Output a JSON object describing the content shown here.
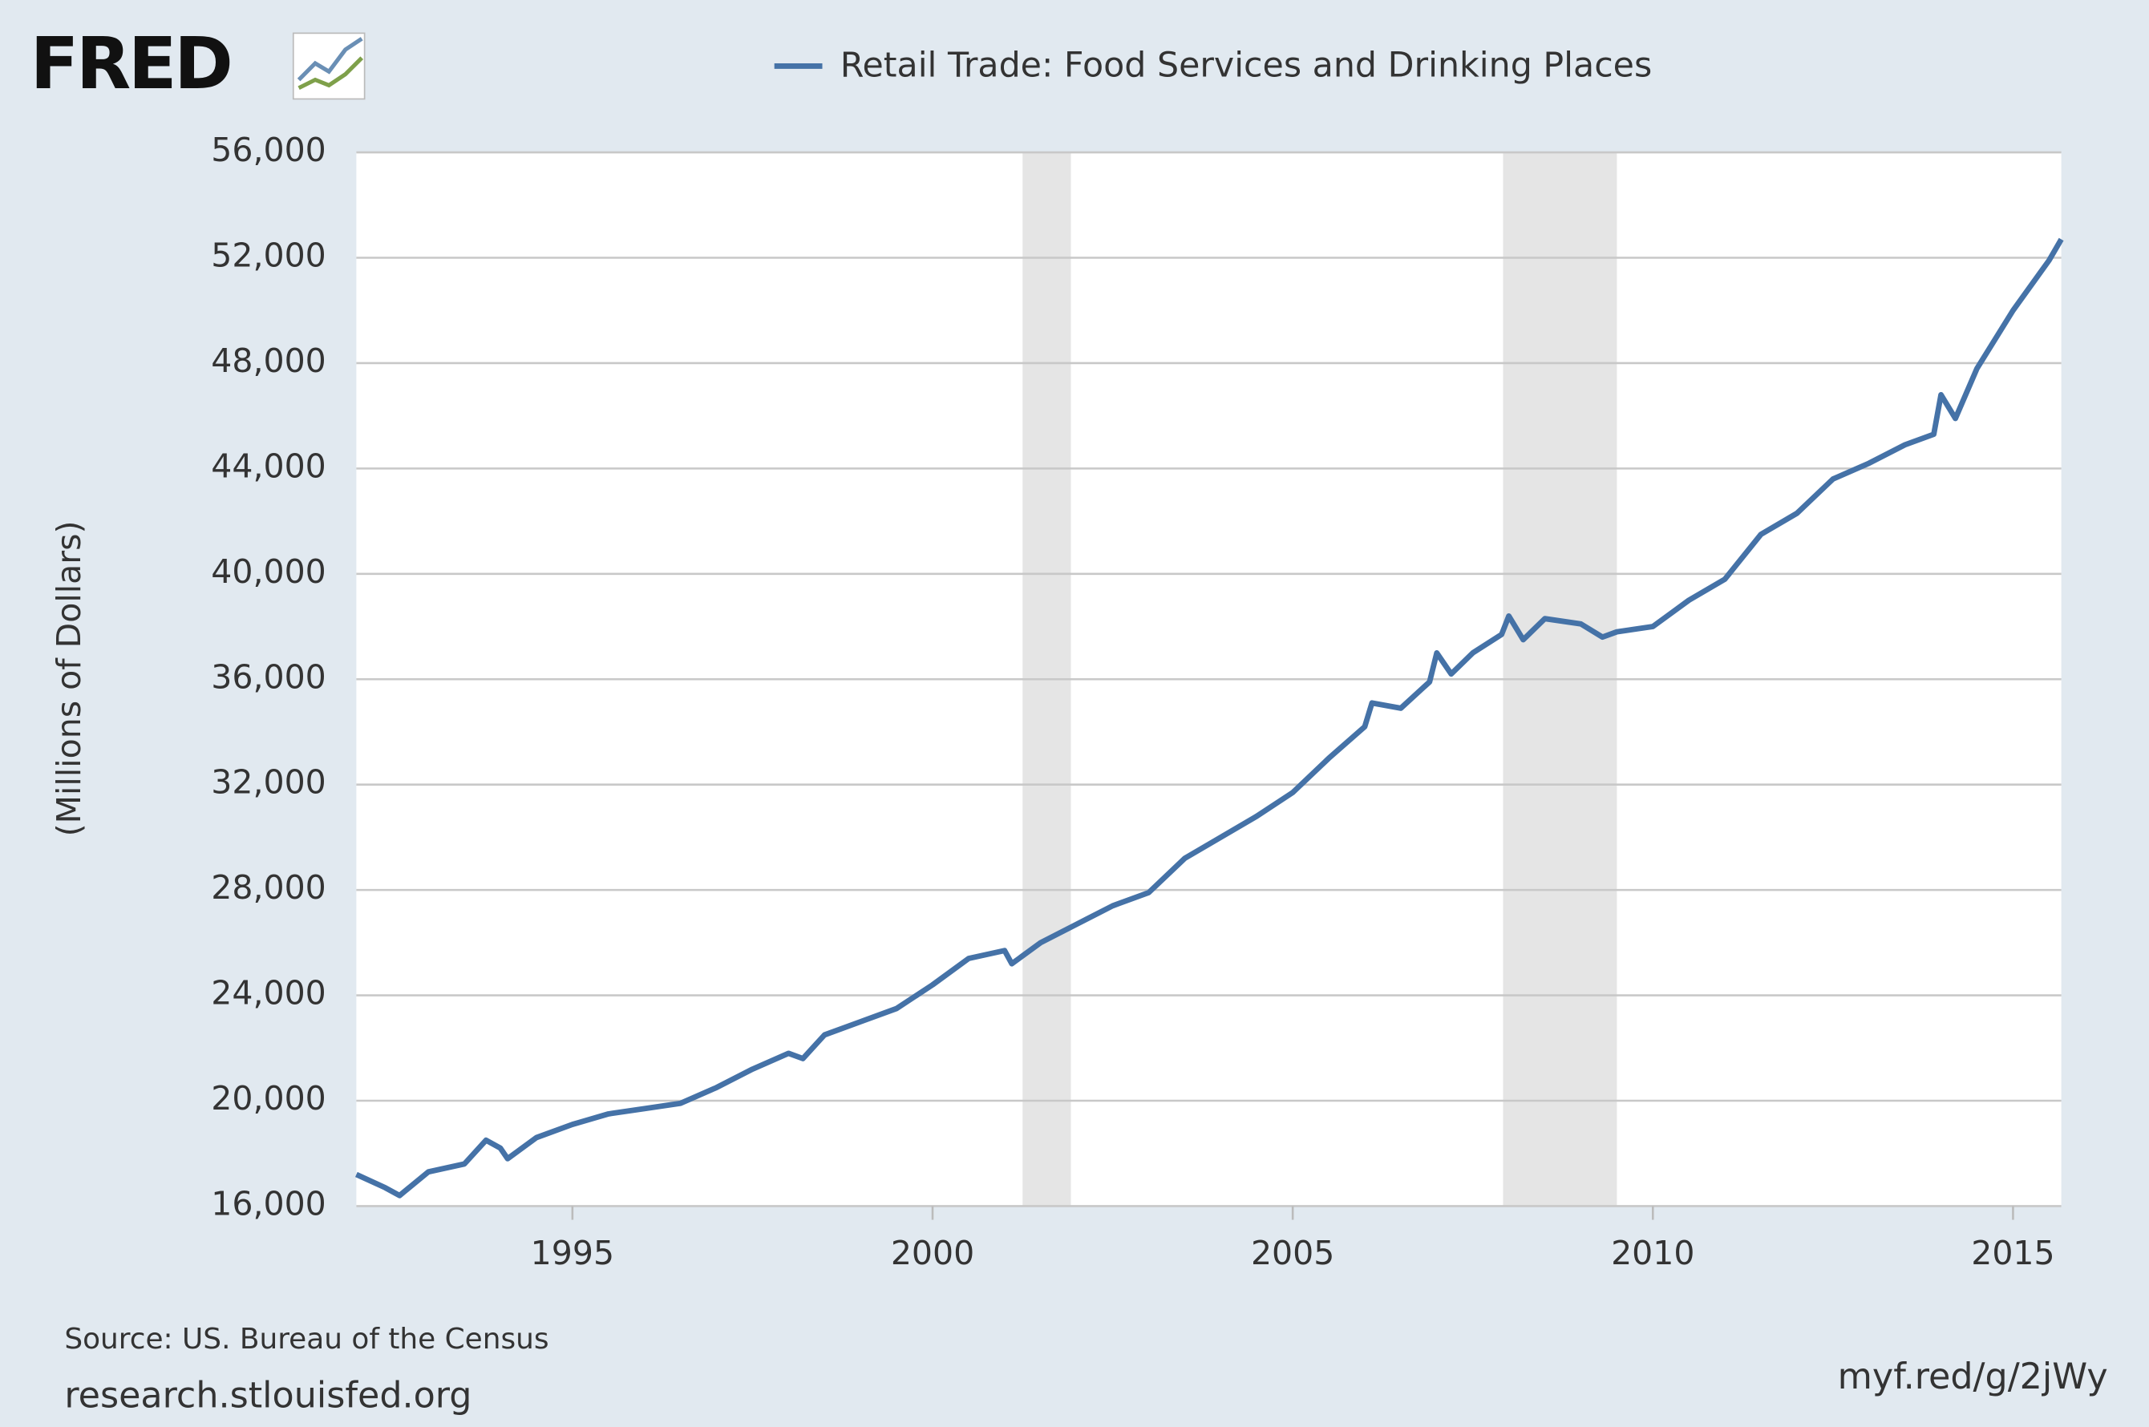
{
  "logo": "FRED",
  "chart_data": {
    "type": "line",
    "y_axis_label": "(Millions of Dollars)",
    "source": "Source: US. Bureau of the Census",
    "site": "research.stlouisfed.org",
    "short_link": "myf.red/g/2jWy",
    "x": [
      1992.0,
      1992.4,
      1992.6,
      1993.0,
      1993.5,
      1993.8,
      1994.0,
      1994.1,
      1994.5,
      1995.0,
      1995.5,
      1996.0,
      1996.5,
      1997.0,
      1997.5,
      1998.0,
      1998.2,
      1998.5,
      1999.0,
      1999.5,
      2000.0,
      2000.5,
      2001.0,
      2001.1,
      2001.5,
      2002.0,
      2002.5,
      2003.0,
      2003.5,
      2004.0,
      2004.5,
      2005.0,
      2005.5,
      2006.0,
      2006.1,
      2006.5,
      2006.9,
      2007.0,
      2007.2,
      2007.5,
      2007.9,
      2008.0,
      2008.2,
      2008.5,
      2009.0,
      2009.3,
      2009.5,
      2010.0,
      2010.5,
      2011.0,
      2011.5,
      2012.0,
      2012.5,
      2013.0,
      2013.5,
      2013.9,
      2014.0,
      2014.2,
      2014.5,
      2015.0,
      2015.5,
      2015.67
    ],
    "series": [
      {
        "name": "Retail Trade: Food Services and Drinking Places",
        "color": "#4572a7",
        "values": [
          17200,
          16700,
          16400,
          17300,
          17600,
          18500,
          18200,
          17800,
          18600,
          19100,
          19500,
          19700,
          19900,
          20500,
          21200,
          21800,
          21600,
          22500,
          23000,
          23500,
          24400,
          25400,
          25700,
          25200,
          26000,
          26700,
          27400,
          27900,
          29200,
          30000,
          30800,
          31700,
          33000,
          34200,
          35100,
          34900,
          35900,
          37000,
          36200,
          37000,
          37700,
          38400,
          37500,
          38300,
          38100,
          37600,
          37800,
          38000,
          39000,
          39800,
          41500,
          42300,
          43600,
          44200,
          44900,
          45300,
          46800,
          45900,
          47800,
          50000,
          51900,
          52700
        ]
      }
    ],
    "shaded_periods": [
      [
        2001.25,
        2001.92
      ],
      [
        2007.92,
        2009.5
      ]
    ],
    "xlim": [
      1992.0,
      2015.67
    ],
    "xticks": [
      1995,
      2000,
      2005,
      2010,
      2015
    ],
    "ylim": [
      16000,
      56000
    ],
    "yticks": [
      {
        "value": 16000,
        "label": "16,000"
      },
      {
        "value": 20000,
        "label": "20,000"
      },
      {
        "value": 24000,
        "label": "24,000"
      },
      {
        "value": 28000,
        "label": "28,000"
      },
      {
        "value": 32000,
        "label": "32,000"
      },
      {
        "value": 36000,
        "label": "36,000"
      },
      {
        "value": 40000,
        "label": "40,000"
      },
      {
        "value": 44000,
        "label": "44,000"
      },
      {
        "value": 48000,
        "label": "48,000"
      },
      {
        "value": 52000,
        "label": "52,000"
      },
      {
        "value": 56000,
        "label": "56,000"
      }
    ],
    "grid": true
  }
}
